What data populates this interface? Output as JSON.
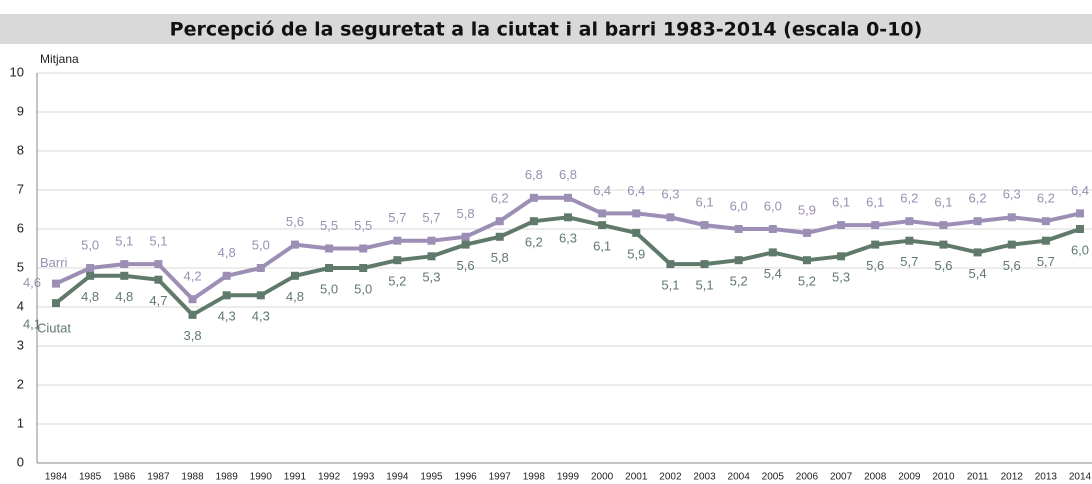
{
  "chart_data": {
    "type": "line",
    "title": "Percepció de la seguretat a la ciutat i al barri 1983-2014 (escala 0-10)",
    "y_label": "Mitjana",
    "categories": [
      "1984",
      "1985",
      "1986",
      "1987",
      "1988",
      "1989",
      "1990",
      "1991",
      "1992",
      "1993",
      "1994",
      "1995",
      "1996",
      "1997",
      "1998",
      "1999",
      "2000",
      "2001",
      "2002",
      "2003",
      "2004",
      "2005",
      "2006",
      "2007",
      "2008",
      "2009",
      "2010",
      "2011",
      "2012",
      "2013",
      "2014"
    ],
    "series": [
      {
        "name": "Barri",
        "color": "#9c8eb4",
        "values": [
          4.6,
          5.0,
          5.1,
          5.1,
          4.2,
          4.8,
          5.0,
          5.6,
          5.5,
          5.5,
          5.7,
          5.7,
          5.8,
          6.2,
          6.8,
          6.8,
          6.4,
          6.4,
          6.3,
          6.1,
          6.0,
          6.0,
          5.9,
          6.1,
          6.1,
          6.2,
          6.1,
          6.2,
          6.3,
          6.2,
          6.4
        ],
        "value_labels": [
          "4,6",
          "5,0",
          "5,1",
          "5,1",
          "4,2",
          "4,8",
          "5,0",
          "5,6",
          "5,5",
          "5,5",
          "5,7",
          "5,7",
          "5,8",
          "6,2",
          "6,8",
          "6,8",
          "6,4",
          "6,4",
          "6,3",
          "6,1",
          "6,0",
          "6,0",
          "5,9",
          "6,1",
          "6,1",
          "6,2",
          "6,1",
          "6,2",
          "6,3",
          "6,2",
          "6,4"
        ]
      },
      {
        "name": "Ciutat",
        "color": "#5f7a6b",
        "values": [
          4.1,
          4.8,
          4.8,
          4.7,
          3.8,
          4.3,
          4.3,
          4.8,
          5.0,
          5.0,
          5.2,
          5.3,
          5.6,
          5.8,
          6.2,
          6.3,
          6.1,
          5.9,
          5.1,
          5.1,
          5.2,
          5.4,
          5.2,
          5.3,
          5.6,
          5.7,
          5.6,
          5.4,
          5.6,
          5.7,
          6.0
        ],
        "value_labels": [
          "4,1",
          "4,8",
          "4,8",
          "4,7",
          "3,8",
          "4,3",
          "4,3",
          "4,8",
          "5,0",
          "5,0",
          "5,2",
          "5,3",
          "5,6",
          "5,8",
          "6,2",
          "6,3",
          "6,1",
          "5,9",
          "5,1",
          "5,1",
          "5,2",
          "5,4",
          "5,2",
          "5,3",
          "5,6",
          "5,7",
          "5,6",
          "5,4",
          "5,6",
          "5,7",
          "6,0"
        ]
      }
    ],
    "ylim": [
      0,
      10
    ],
    "yticks": [
      0,
      1,
      2,
      3,
      4,
      5,
      6,
      7,
      8,
      9,
      10
    ],
    "grid": true
  }
}
